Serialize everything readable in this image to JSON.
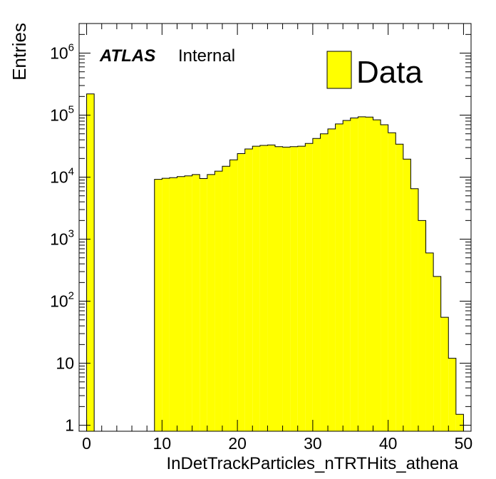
{
  "chart_data": {
    "type": "bar",
    "histogram": true,
    "xlabel": "InDetTrackParticles_nTRTHits_athena",
    "ylabel": "Entries",
    "xlim": [
      -1,
      51
    ],
    "ylim": [
      0.8,
      3000000
    ],
    "yscale": "log",
    "grid": false,
    "bin_width": 1,
    "bins_x": [
      -1,
      0,
      1,
      2,
      3,
      4,
      5,
      6,
      7,
      8,
      9,
      10,
      11,
      12,
      13,
      14,
      15,
      16,
      17,
      18,
      19,
      20,
      21,
      22,
      23,
      24,
      25,
      26,
      27,
      28,
      29,
      30,
      31,
      32,
      33,
      34,
      35,
      36,
      37,
      38,
      39,
      40,
      41,
      42,
      43,
      44,
      45,
      46,
      47,
      48,
      49,
      50
    ],
    "values": [
      0,
      220000,
      0,
      0,
      0,
      0,
      0,
      0,
      0,
      0,
      9200,
      9600,
      9800,
      10200,
      10500,
      11000,
      9500,
      11000,
      12500,
      15000,
      19000,
      24000,
      28500,
      31500,
      32500,
      33000,
      31000,
      30500,
      31000,
      31500,
      35000,
      42000,
      50000,
      60000,
      72000,
      82000,
      90000,
      94000,
      93000,
      84000,
      70000,
      52000,
      34000,
      19500,
      6500,
      2000,
      600,
      250,
      55,
      12,
      1.5,
      0
    ],
    "ticks": {
      "x": [
        "0",
        "10",
        "20",
        "30",
        "40",
        "50"
      ],
      "y_major_values": [
        1,
        10,
        100,
        1000,
        10000,
        100000,
        1000000
      ],
      "y_major_labels": [
        {
          "base": "1",
          "exp": ""
        },
        {
          "base": "10",
          "exp": ""
        },
        {
          "base": "10",
          "exp": "2"
        },
        {
          "base": "10",
          "exp": "3"
        },
        {
          "base": "10",
          "exp": "4"
        },
        {
          "base": "10",
          "exp": "5"
        },
        {
          "base": "10",
          "exp": "6"
        }
      ]
    },
    "annotation": {
      "bold": "ATLAS",
      "normal": "Internal"
    },
    "legend": {
      "entries": [
        {
          "label": "Data",
          "color": "#ffff00"
        }
      ],
      "placement": "top-right"
    },
    "colors": {
      "fill": "#ffff00",
      "line": "#000000"
    }
  }
}
